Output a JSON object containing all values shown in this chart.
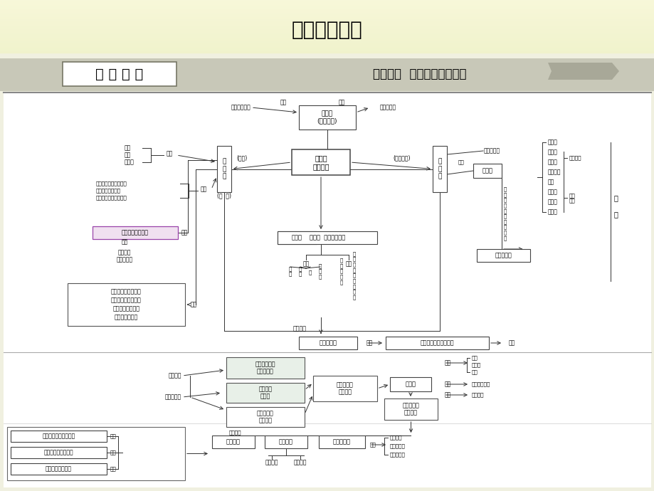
{
  "title": "单元综合提升",
  "header_left": "网 络 构 建",
  "header_right": "构建网络  架起知识间的桥梁",
  "bg_top": "#f5f5d0",
  "bg_content": "#f8f8f0",
  "header_bg": "#ccccbb",
  "line_color": "#444444",
  "box_edge": "#444444"
}
